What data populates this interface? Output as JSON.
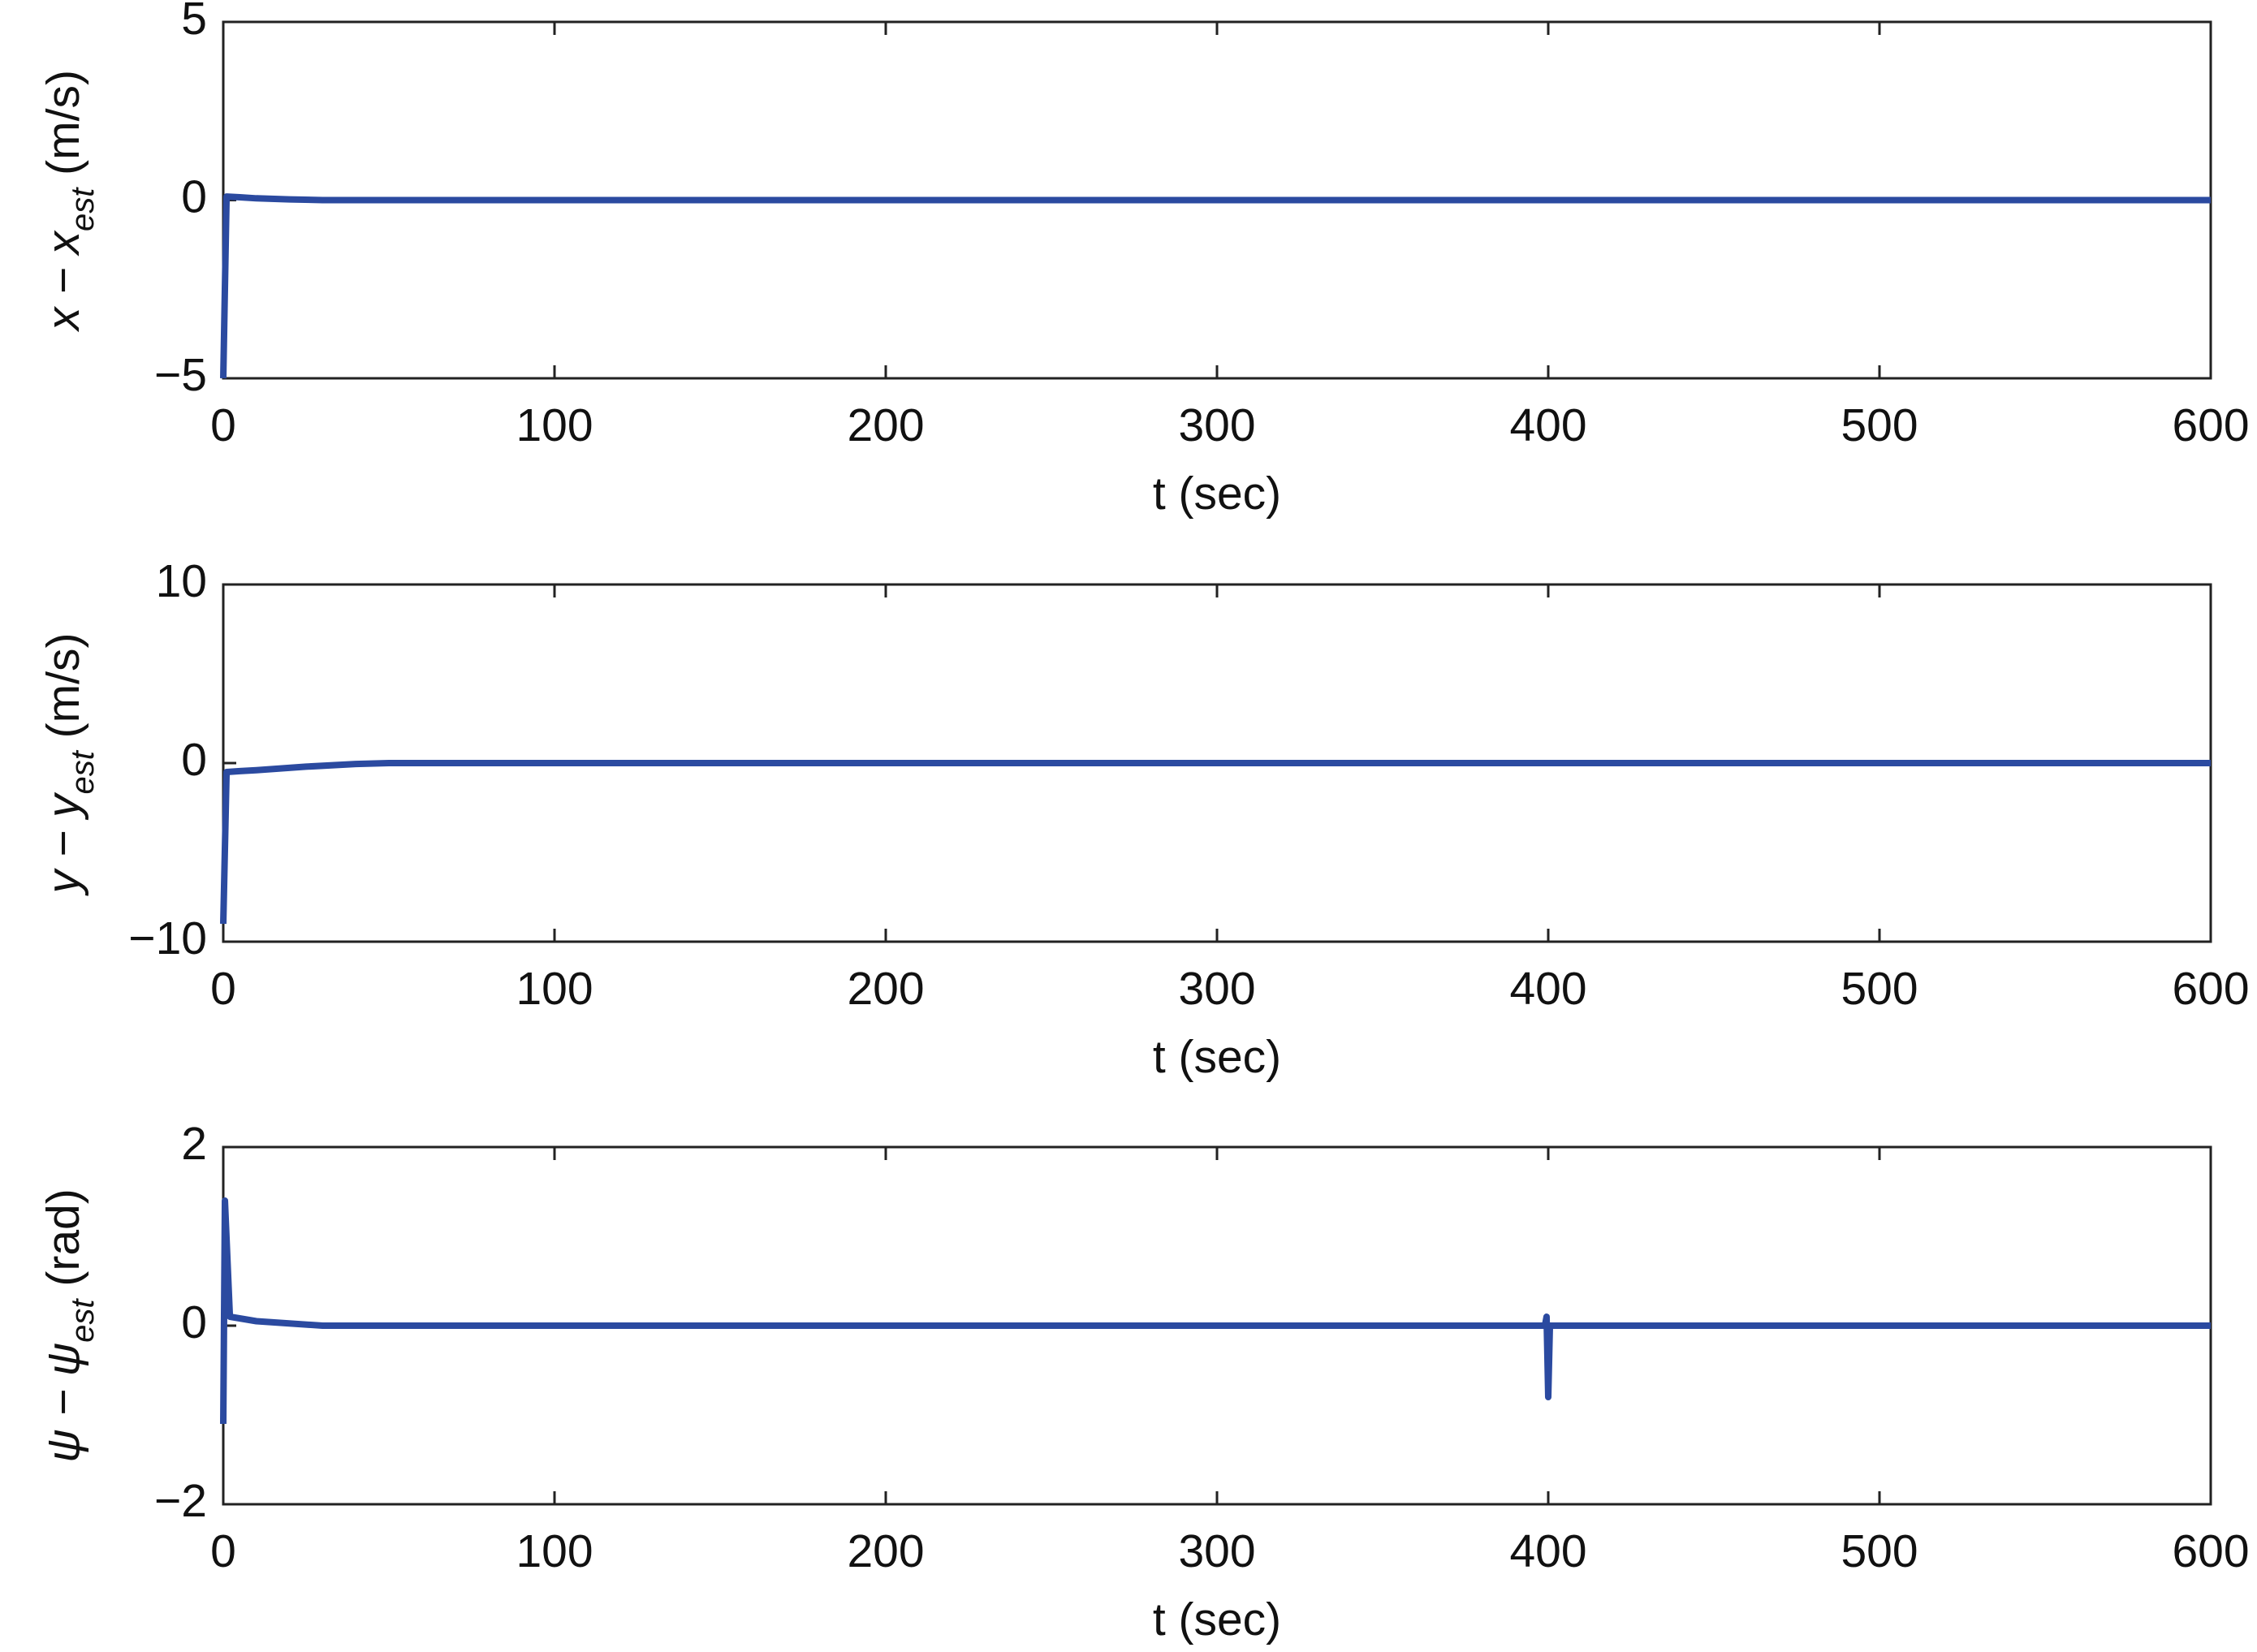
{
  "chart_data": [
    {
      "type": "line",
      "ylabel": [
        "x − x",
        "est",
        " (m/s)"
      ],
      "xlabel": "t (sec)",
      "x": [
        0,
        1,
        5,
        10,
        20,
        30,
        60,
        600
      ],
      "values": [
        -5,
        0.1,
        0.08,
        0.05,
        0.02,
        0,
        0,
        0
      ],
      "color": "#2b4aa0",
      "xlim": [
        0,
        600
      ],
      "xticks": [
        0,
        100,
        200,
        300,
        400,
        500,
        600
      ],
      "ylim": [
        -5,
        5
      ],
      "yticks": [
        {
          "value": -5,
          "label": "−5"
        },
        0,
        5
      ],
      "grid": false
    },
    {
      "type": "line",
      "ylabel": [
        "y − y",
        "est",
        " (m/s)"
      ],
      "xlabel": "t (sec)",
      "x": [
        0,
        1,
        5,
        10,
        25,
        40,
        50,
        600
      ],
      "values": [
        -9,
        -0.5,
        -0.45,
        -0.4,
        -0.2,
        -0.05,
        0,
        0
      ],
      "color": "#2b4aa0",
      "xlim": [
        0,
        600
      ],
      "xticks": [
        0,
        100,
        200,
        300,
        400,
        500,
        600
      ],
      "ylim": [
        -10,
        10
      ],
      "yticks": [
        {
          "value": -10,
          "label": "−10"
        },
        0,
        10
      ],
      "grid": false
    },
    {
      "type": "line",
      "ylabel": [
        "ψ − ψ",
        "est",
        " (rad)"
      ],
      "xlabel": "t (sec)",
      "x": [
        0,
        0.5,
        2,
        10,
        30,
        399,
        399.5,
        400,
        400.5,
        600
      ],
      "values": [
        -1.1,
        1.4,
        0.1,
        0.05,
        0,
        0,
        0.1,
        -0.8,
        0,
        0
      ],
      "color": "#2b4aa0",
      "xlim": [
        0,
        600
      ],
      "xticks": [
        0,
        100,
        200,
        300,
        400,
        500,
        600
      ],
      "ylim": [
        -2,
        2
      ],
      "yticks": [
        {
          "value": -2,
          "label": "−2"
        },
        0,
        2
      ],
      "grid": false
    }
  ]
}
